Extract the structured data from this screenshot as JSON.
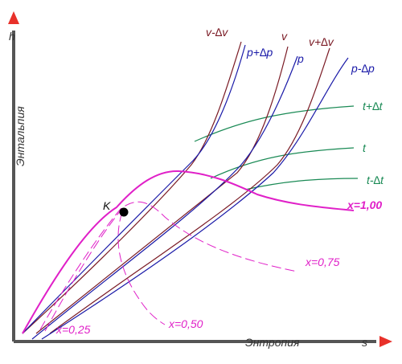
{
  "axes": {
    "y_label": "h",
    "x_label": "s",
    "y_title": "Энтальпия",
    "x_title": "Энтропия"
  },
  "critical_point": {
    "label": "K"
  },
  "isochores": {
    "low": "v-∆v",
    "mid": "v",
    "high": "v+∆v"
  },
  "isobars": {
    "high": "p+∆p",
    "mid": "p",
    "low": "p-∆p"
  },
  "isotherms": {
    "high": "t+∆t",
    "mid": "t",
    "low": "t-∆t"
  },
  "dryness_lines": {
    "x100": "x=1,00",
    "x075": "x=0,75",
    "x050": "x=0,50",
    "x025": "x=0,25"
  },
  "colors": {
    "axis": "#555555",
    "arrow": "#e8312a",
    "isochore": "#7a1a24",
    "isobar": "#1a1aa8",
    "isotherm": "#1a8a55",
    "saturation": "#e020c8",
    "point": "#000000"
  }
}
